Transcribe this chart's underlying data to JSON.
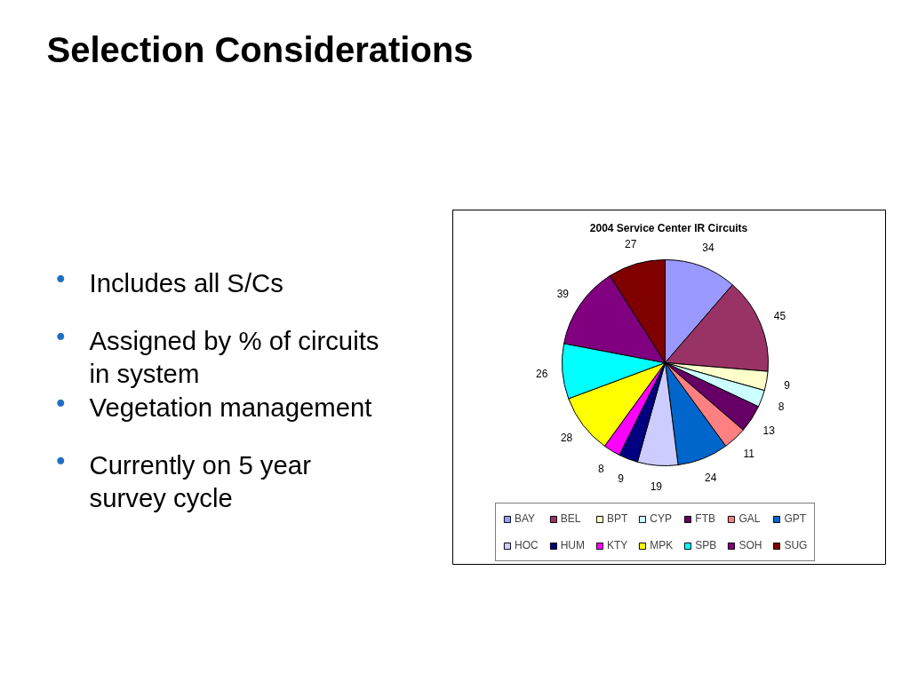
{
  "chart_data": {
    "type": "pie",
    "title": "2004 Service Center IR Circuits",
    "categories": [
      "BAY",
      "BEL",
      "BPT",
      "CYP",
      "FTB",
      "GAL",
      "GPT",
      "HOC",
      "HUM",
      "KTY",
      "MPK",
      "SPB",
      "SOH",
      "SUG"
    ],
    "values": [
      34,
      45,
      9,
      8,
      13,
      11,
      24,
      19,
      9,
      8,
      28,
      26,
      39,
      27
    ],
    "colors": [
      "#9999ff",
      "#993366",
      "#ffffcc",
      "#ccffff",
      "#660066",
      "#ff8080",
      "#0066cc",
      "#ccccff",
      "#000080",
      "#ff00ff",
      "#ffff00",
      "#00ffff",
      "#800080",
      "#800000"
    ],
    "data_labels": true,
    "legend": "bottom",
    "annotations": [
      "Selection Considerations",
      "● Includes all S/Cs",
      "● Assigned by % of circuits\nin system",
      "● Vegetation management",
      "● Currently on 5 year\nsurvey cycle"
    ]
  }
}
